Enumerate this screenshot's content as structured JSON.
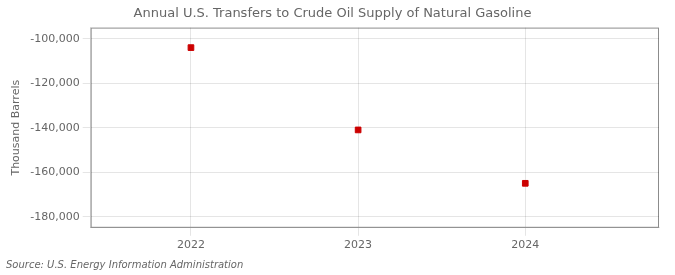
{
  "chart_data": {
    "type": "scatter",
    "title": "Annual U.S. Transfers to Crude Oil Supply of Natural Gasoline",
    "ylabel": "Thousand Barrels",
    "annotations": [
      "Source: U.S. Energy Information Administration"
    ],
    "x": [
      2022,
      2023,
      2024
    ],
    "values": [
      -104000,
      -141000,
      -165000
    ],
    "color": "#cc0000",
    "marker": "square",
    "xlim": [
      2021.4,
      2024.8
    ],
    "xticks": [
      2022,
      2023,
      2024
    ],
    "ylim": [
      -185000,
      -95000
    ],
    "yticks": [
      {
        "value": -100000,
        "label": "-100,000"
      },
      {
        "value": -120000,
        "label": "-120,000"
      },
      {
        "value": -140000,
        "label": "-140,000"
      },
      {
        "value": -160000,
        "label": "-160,000"
      },
      {
        "value": -180000,
        "label": "-180,000"
      }
    ],
    "grid": true
  }
}
